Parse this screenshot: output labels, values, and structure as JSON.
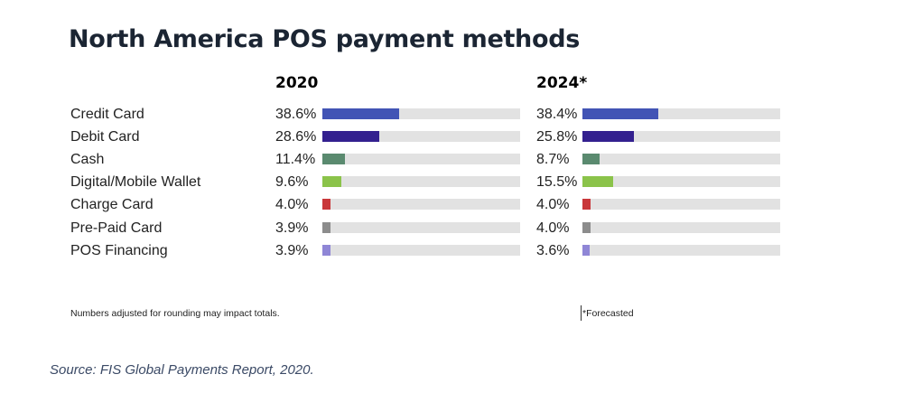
{
  "chart_data": {
    "type": "bar",
    "orientation": "horizontal",
    "title": "North America POS payment methods",
    "categories": [
      "Credit Card",
      "Debit Card",
      "Cash",
      "Digital/Mobile Wallet",
      "Charge Card",
      "Pre-Paid Card",
      "POS Financing"
    ],
    "series": [
      {
        "name": "2020",
        "values": [
          38.6,
          28.6,
          11.4,
          9.6,
          4.0,
          3.9,
          3.9
        ],
        "labels": [
          "38.6%",
          "28.6%",
          "11.4%",
          "9.6%",
          "4.0%",
          "3.9%",
          "3.9%"
        ]
      },
      {
        "name": "2024*",
        "values": [
          38.4,
          25.8,
          8.7,
          15.5,
          4.0,
          4.0,
          3.6
        ],
        "labels": [
          "38.4%",
          "25.8%",
          "8.7%",
          "15.5%",
          "4.0%",
          "4.0%",
          "3.6%"
        ]
      }
    ],
    "xlim": [
      0,
      100
    ],
    "unit": "%",
    "colors": [
      "#4254b5",
      "#33208f",
      "#5a8a6f",
      "#8bc34a",
      "#c9373a",
      "#8c8c8c",
      "#8f86d6"
    ],
    "track_color": "#e2e2e2",
    "grid": false,
    "footnote": "Numbers adjusted for rounding may impact totals.",
    "forecast_note": "*Forecasted",
    "source": "Source: FIS Global Payments Report, 2020."
  }
}
